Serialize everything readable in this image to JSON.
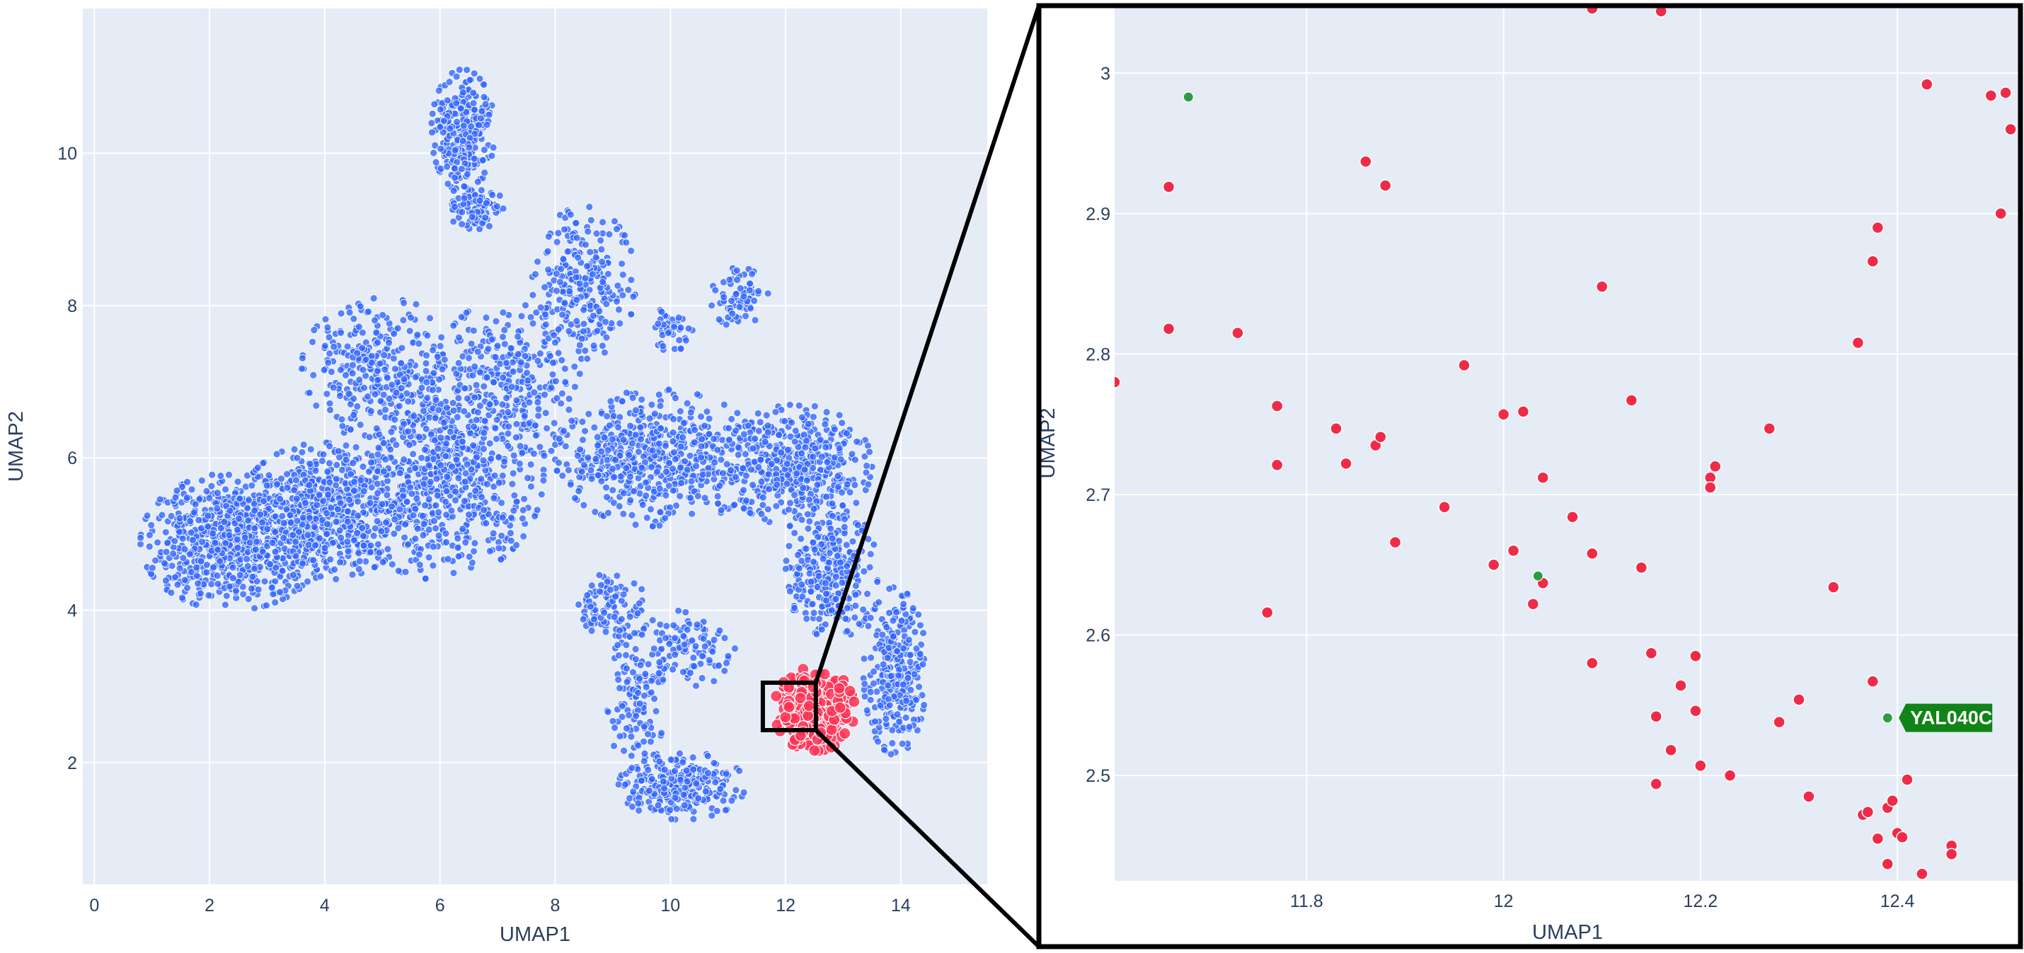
{
  "chart_data": [
    {
      "type": "scatter",
      "panel": "overview",
      "xlabel": "UMAP1",
      "ylabel": "UMAP2",
      "xlim": [
        -0.2,
        15.5
      ],
      "ylim": [
        0.4,
        11.9
      ],
      "x_ticks": [
        0,
        2,
        4,
        6,
        8,
        10,
        12,
        14
      ],
      "y_ticks": [
        2,
        4,
        6,
        8,
        10
      ],
      "grid": true,
      "colors": {
        "background": "#e5ecf6",
        "grid": "#ffffff",
        "series_other": "#3366ff",
        "series_selected": "#ff3355"
      },
      "series": [
        {
          "role": "other",
          "regions": [
            {
              "cx": 2.4,
              "cy": 4.9,
              "rx": 1.6,
              "ry": 0.9,
              "n": 700
            },
            {
              "cx": 4.0,
              "cy": 5.3,
              "rx": 1.5,
              "ry": 0.9,
              "n": 600
            },
            {
              "cx": 6.0,
              "cy": 5.8,
              "rx": 1.8,
              "ry": 1.4,
              "n": 700
            },
            {
              "cx": 5.0,
              "cy": 7.2,
              "rx": 1.4,
              "ry": 0.9,
              "n": 300
            },
            {
              "cx": 7.2,
              "cy": 7.0,
              "rx": 1.3,
              "ry": 1.1,
              "n": 300
            },
            {
              "cx": 8.5,
              "cy": 8.3,
              "rx": 0.9,
              "ry": 1.0,
              "n": 250
            },
            {
              "cx": 6.4,
              "cy": 10.3,
              "rx": 0.55,
              "ry": 0.8,
              "n": 280
            },
            {
              "cx": 6.6,
              "cy": 9.3,
              "rx": 0.5,
              "ry": 0.3,
              "n": 100
            },
            {
              "cx": 9.8,
              "cy": 6.0,
              "rx": 1.8,
              "ry": 0.9,
              "n": 550
            },
            {
              "cx": 12.2,
              "cy": 5.9,
              "rx": 1.3,
              "ry": 0.8,
              "n": 450
            },
            {
              "cx": 11.2,
              "cy": 8.1,
              "rx": 0.5,
              "ry": 0.4,
              "n": 70
            },
            {
              "cx": 10.0,
              "cy": 7.7,
              "rx": 0.4,
              "ry": 0.3,
              "n": 40
            },
            {
              "cx": 12.8,
              "cy": 4.5,
              "rx": 0.8,
              "ry": 0.9,
              "n": 320
            },
            {
              "cx": 13.9,
              "cy": 3.2,
              "rx": 0.55,
              "ry": 1.1,
              "n": 300
            },
            {
              "cx": 9.0,
              "cy": 4.0,
              "rx": 0.6,
              "ry": 0.5,
              "n": 100
            },
            {
              "cx": 10.3,
              "cy": 3.5,
              "rx": 0.9,
              "ry": 0.5,
              "n": 120
            },
            {
              "cx": 10.2,
              "cy": 1.7,
              "rx": 1.1,
              "ry": 0.45,
              "n": 260
            },
            {
              "cx": 9.4,
              "cy": 2.8,
              "rx": 0.5,
              "ry": 0.9,
              "n": 110
            }
          ]
        },
        {
          "role": "selected",
          "regions": [
            {
              "cx": 12.5,
              "cy": 2.7,
              "rx": 0.7,
              "ry": 0.55,
              "n": 220
            }
          ]
        }
      ]
    },
    {
      "type": "scatter",
      "panel": "zoom",
      "xlabel": "UMAP1",
      "ylabel": "UMAP2",
      "xlim": [
        11.605,
        12.525
      ],
      "ylim": [
        2.425,
        3.048
      ],
      "x_ticks": [
        11.8,
        12,
        12.2,
        12.4
      ],
      "y_ticks": [
        2.5,
        2.6,
        2.7,
        2.8,
        2.9,
        3
      ],
      "grid": true,
      "colors": {
        "background": "#e5ecf6",
        "grid": "#ffffff",
        "selected": "#ef2b48",
        "highlight": "#2e9b42",
        "label_bg": "#118417"
      },
      "selected_points": [
        [
          12.09,
          3.046
        ],
        [
          12.16,
          3.044
        ],
        [
          11.605,
          2.78
        ],
        [
          11.86,
          2.937
        ],
        [
          11.88,
          2.92
        ],
        [
          11.66,
          2.919
        ],
        [
          11.66,
          2.818
        ],
        [
          11.73,
          2.815
        ],
        [
          11.77,
          2.763
        ],
        [
          11.77,
          2.721
        ],
        [
          11.76,
          2.616
        ],
        [
          11.83,
          2.747
        ],
        [
          11.84,
          2.722
        ],
        [
          11.87,
          2.735
        ],
        [
          11.875,
          2.741
        ],
        [
          11.89,
          2.666
        ],
        [
          11.96,
          2.792
        ],
        [
          11.94,
          2.691
        ],
        [
          11.99,
          2.65
        ],
        [
          12.0,
          2.757
        ],
        [
          12.01,
          2.66
        ],
        [
          12.02,
          2.759
        ],
        [
          12.03,
          2.622
        ],
        [
          12.04,
          2.637
        ],
        [
          12.04,
          2.712
        ],
        [
          12.07,
          2.684
        ],
        [
          12.09,
          2.658
        ],
        [
          12.09,
          2.58
        ],
        [
          12.1,
          2.848
        ],
        [
          12.13,
          2.767
        ],
        [
          12.14,
          2.648
        ],
        [
          12.15,
          2.587
        ],
        [
          12.155,
          2.542
        ],
        [
          12.155,
          2.494
        ],
        [
          12.17,
          2.518
        ],
        [
          12.18,
          2.564
        ],
        [
          12.195,
          2.546
        ],
        [
          12.195,
          2.585
        ],
        [
          12.2,
          2.507
        ],
        [
          12.21,
          2.712
        ],
        [
          12.21,
          2.705
        ],
        [
          12.215,
          2.72
        ],
        [
          12.23,
          2.5
        ],
        [
          12.27,
          2.747
        ],
        [
          12.28,
          2.538
        ],
        [
          12.3,
          2.554
        ],
        [
          12.31,
          2.485
        ],
        [
          12.335,
          2.634
        ],
        [
          12.36,
          2.808
        ],
        [
          12.365,
          2.472
        ],
        [
          12.37,
          2.474
        ],
        [
          12.375,
          2.567
        ],
        [
          12.375,
          2.866
        ],
        [
          12.38,
          2.89
        ],
        [
          12.38,
          2.455
        ],
        [
          12.39,
          2.437
        ],
        [
          12.39,
          2.477
        ],
        [
          12.395,
          2.482
        ],
        [
          12.4,
          2.459
        ],
        [
          12.405,
          2.456
        ],
        [
          12.41,
          2.497
        ],
        [
          12.425,
          2.43
        ],
        [
          12.43,
          2.992
        ],
        [
          12.455,
          2.45
        ],
        [
          12.455,
          2.444
        ],
        [
          12.495,
          2.984
        ],
        [
          12.51,
          2.986
        ],
        [
          12.505,
          2.9
        ],
        [
          12.515,
          2.96
        ]
      ],
      "highlight_points": [
        [
          11.68,
          2.983
        ],
        [
          12.035,
          2.642
        ],
        [
          12.39,
          2.541
        ]
      ],
      "annotation": {
        "text": "YAL040C",
        "x": 12.39,
        "y": 2.541
      }
    }
  ]
}
